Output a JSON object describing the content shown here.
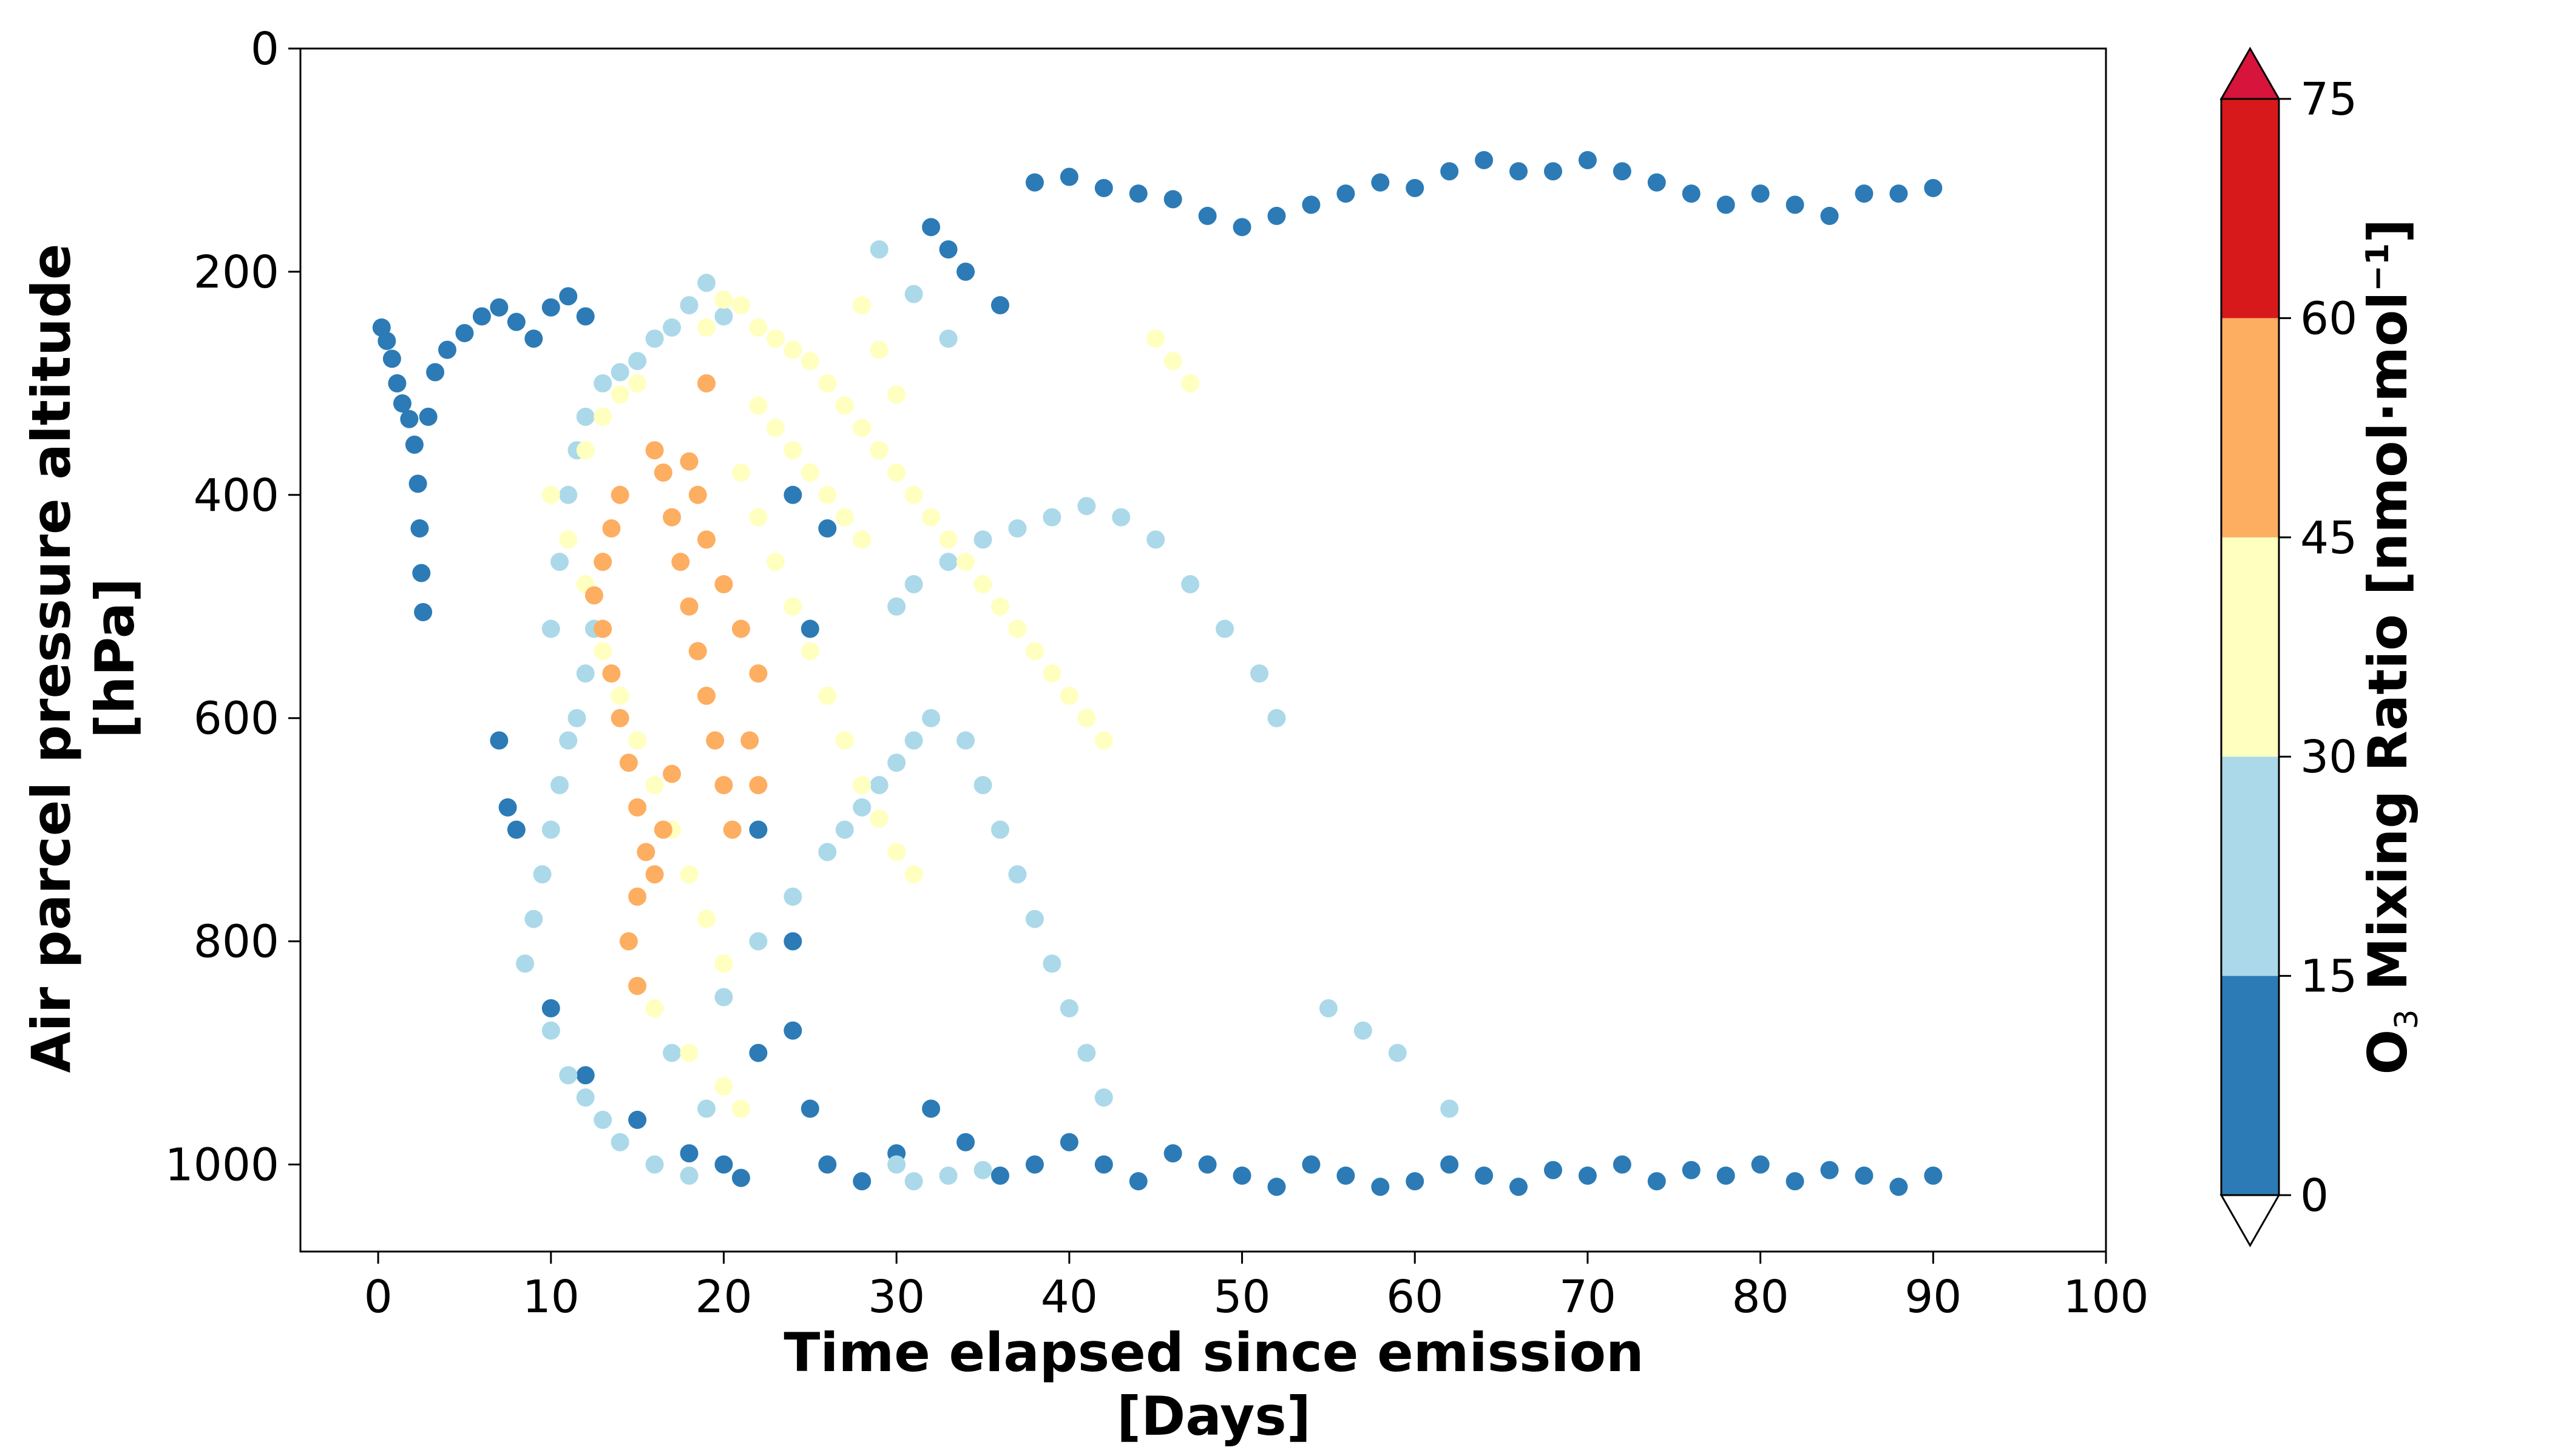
{
  "chart_data": {
    "type": "scatter",
    "title": "",
    "xlabel": [
      "Time elapsed since emission",
      "[Days]"
    ],
    "ylabel": [
      "Air parcel pressure altitude",
      "[hPa]"
    ],
    "xlim": [
      -4.5,
      100
    ],
    "ylim": [
      1078,
      0
    ],
    "y_inverted": true,
    "grid": false,
    "x_ticks": [
      "0",
      "10",
      "20",
      "30",
      "40",
      "50",
      "60",
      "70",
      "80",
      "90",
      "100"
    ],
    "y_ticks": [
      "0",
      "200",
      "400",
      "600",
      "800",
      "1000"
    ],
    "colorbar": {
      "label_prefix": "O",
      "label_subscript": "3",
      "label_suffix": " Mixing Ratio [nmol·mol",
      "label_superscript": "−1",
      "label_close": "]",
      "ticks": [
        "0",
        "15",
        "30",
        "45",
        "60",
        "75"
      ],
      "extend": "both",
      "bins": [
        {
          "min": 0,
          "max": 15,
          "color": "#2c7bb6"
        },
        {
          "min": 15,
          "max": 30,
          "color": "#abd9e9"
        },
        {
          "min": 30,
          "max": 45,
          "color": "#ffffbf"
        },
        {
          "min": 45,
          "max": 60,
          "color": "#fdae61"
        },
        {
          "min": 60,
          "max": 75,
          "color": "#d7191c"
        }
      ],
      "over_color": "#d7143c",
      "under_color": "#ffffff"
    },
    "series": [
      {
        "category": "0-15",
        "color": "#2c7bb6",
        "points": [
          [
            0.2,
            250
          ],
          [
            0.5,
            262
          ],
          [
            0.8,
            278
          ],
          [
            1.1,
            300
          ],
          [
            1.4,
            318
          ],
          [
            1.8,
            332
          ],
          [
            2.1,
            355
          ],
          [
            2.3,
            390
          ],
          [
            2.4,
            430
          ],
          [
            2.5,
            470
          ],
          [
            2.6,
            505
          ],
          [
            2.9,
            330
          ],
          [
            3.3,
            290
          ],
          [
            4.0,
            270
          ],
          [
            5.0,
            255
          ],
          [
            6.0,
            240
          ],
          [
            7.0,
            232
          ],
          [
            8.0,
            245
          ],
          [
            9.0,
            260
          ],
          [
            10.0,
            232
          ],
          [
            11.0,
            222
          ],
          [
            12.0,
            240
          ],
          [
            7.0,
            620
          ],
          [
            7.5,
            680
          ],
          [
            8.0,
            700
          ],
          [
            10.0,
            860
          ],
          [
            12.0,
            920
          ],
          [
            15.0,
            960
          ],
          [
            18.0,
            990
          ],
          [
            20.0,
            1000
          ],
          [
            21.0,
            1012
          ],
          [
            22.0,
            900
          ],
          [
            24.0,
            880
          ],
          [
            25.0,
            950
          ],
          [
            26.0,
            1000
          ],
          [
            28.0,
            1015
          ],
          [
            30.0,
            990
          ],
          [
            32.0,
            950
          ],
          [
            34.0,
            980
          ],
          [
            36.0,
            1010
          ],
          [
            38.0,
            1000
          ],
          [
            40.0,
            980
          ],
          [
            42.0,
            1000
          ],
          [
            44.0,
            1015
          ],
          [
            46.0,
            990
          ],
          [
            48.0,
            1000
          ],
          [
            50.0,
            1010
          ],
          [
            52.0,
            1020
          ],
          [
            54.0,
            1000
          ],
          [
            56.0,
            1010
          ],
          [
            58.0,
            1020
          ],
          [
            60.0,
            1015
          ],
          [
            62.0,
            1000
          ],
          [
            64.0,
            1010
          ],
          [
            66.0,
            1020
          ],
          [
            68.0,
            1005
          ],
          [
            70.0,
            1010
          ],
          [
            72.0,
            1000
          ],
          [
            74.0,
            1015
          ],
          [
            76.0,
            1005
          ],
          [
            78.0,
            1010
          ],
          [
            80.0,
            1000
          ],
          [
            82.0,
            1015
          ],
          [
            84.0,
            1005
          ],
          [
            86.0,
            1010
          ],
          [
            88.0,
            1020
          ],
          [
            90.0,
            1010
          ],
          [
            38.0,
            120
          ],
          [
            40.0,
            115
          ],
          [
            42.0,
            125
          ],
          [
            44.0,
            130
          ],
          [
            46.0,
            135
          ],
          [
            48.0,
            150
          ],
          [
            50.0,
            160
          ],
          [
            52.0,
            150
          ],
          [
            54.0,
            140
          ],
          [
            56.0,
            130
          ],
          [
            58.0,
            120
          ],
          [
            60.0,
            125
          ],
          [
            62.0,
            110
          ],
          [
            64.0,
            100
          ],
          [
            66.0,
            110
          ],
          [
            68.0,
            110
          ],
          [
            70.0,
            100
          ],
          [
            72.0,
            110
          ],
          [
            74.0,
            120
          ],
          [
            76.0,
            130
          ],
          [
            78.0,
            140
          ],
          [
            80.0,
            130
          ],
          [
            82.0,
            140
          ],
          [
            84.0,
            150
          ],
          [
            86.0,
            130
          ],
          [
            88.0,
            130
          ],
          [
            90.0,
            125
          ],
          [
            32.0,
            160
          ],
          [
            33.0,
            180
          ],
          [
            34.0,
            200
          ],
          [
            36.0,
            230
          ],
          [
            24.0,
            400
          ],
          [
            26.0,
            430
          ],
          [
            25.0,
            520
          ],
          [
            22.0,
            700
          ],
          [
            24.0,
            800
          ]
        ]
      },
      {
        "category": "15-30",
        "color": "#abd9e9",
        "points": [
          [
            8.5,
            820
          ],
          [
            9.0,
            780
          ],
          [
            9.5,
            740
          ],
          [
            10.0,
            700
          ],
          [
            10.5,
            660
          ],
          [
            11.0,
            620
          ],
          [
            11.5,
            600
          ],
          [
            12.0,
            560
          ],
          [
            12.5,
            520
          ],
          [
            10.0,
            520
          ],
          [
            10.5,
            460
          ],
          [
            11.0,
            400
          ],
          [
            11.5,
            360
          ],
          [
            12.0,
            330
          ],
          [
            13.0,
            300
          ],
          [
            14.0,
            290
          ],
          [
            15.0,
            280
          ],
          [
            16.0,
            260
          ],
          [
            17.0,
            250
          ],
          [
            18.0,
            230
          ],
          [
            19.0,
            210
          ],
          [
            20.0,
            240
          ],
          [
            10.0,
            880
          ],
          [
            11.0,
            920
          ],
          [
            12.0,
            940
          ],
          [
            13.0,
            960
          ],
          [
            14.0,
            980
          ],
          [
            16.0,
            1000
          ],
          [
            18.0,
            1010
          ],
          [
            17.0,
            900
          ],
          [
            19.0,
            950
          ],
          [
            20.0,
            850
          ],
          [
            22.0,
            800
          ],
          [
            24.0,
            760
          ],
          [
            26.0,
            720
          ],
          [
            27.0,
            700
          ],
          [
            28.0,
            680
          ],
          [
            29.0,
            660
          ],
          [
            30.0,
            640
          ],
          [
            31.0,
            620
          ],
          [
            32.0,
            600
          ],
          [
            34.0,
            620
          ],
          [
            35.0,
            660
          ],
          [
            36.0,
            700
          ],
          [
            37.0,
            740
          ],
          [
            38.0,
            780
          ],
          [
            39.0,
            820
          ],
          [
            40.0,
            860
          ],
          [
            41.0,
            900
          ],
          [
            42.0,
            940
          ],
          [
            30.0,
            500
          ],
          [
            31.0,
            480
          ],
          [
            33.0,
            460
          ],
          [
            35.0,
            440
          ],
          [
            37.0,
            430
          ],
          [
            39.0,
            420
          ],
          [
            41.0,
            410
          ],
          [
            43.0,
            420
          ],
          [
            45.0,
            440
          ],
          [
            47.0,
            480
          ],
          [
            49.0,
            520
          ],
          [
            51.0,
            560
          ],
          [
            52.0,
            600
          ],
          [
            29.0,
            180
          ],
          [
            31.0,
            220
          ],
          [
            33.0,
            260
          ],
          [
            30.0,
            1000
          ],
          [
            31.0,
            1015
          ],
          [
            33.0,
            1010
          ],
          [
            35.0,
            1005
          ],
          [
            55.0,
            860
          ],
          [
            57.0,
            880
          ],
          [
            59.0,
            900
          ],
          [
            62.0,
            950
          ]
        ]
      },
      {
        "category": "30-45",
        "color": "#ffffbf",
        "points": [
          [
            10.0,
            400
          ],
          [
            11.0,
            440
          ],
          [
            12.0,
            480
          ],
          [
            13.0,
            540
          ],
          [
            14.0,
            580
          ],
          [
            15.0,
            620
          ],
          [
            16.0,
            660
          ],
          [
            17.0,
            700
          ],
          [
            18.0,
            740
          ],
          [
            19.0,
            780
          ],
          [
            20.0,
            820
          ],
          [
            16.0,
            860
          ],
          [
            18.0,
            900
          ],
          [
            20.0,
            930
          ],
          [
            21.0,
            950
          ],
          [
            12.0,
            360
          ],
          [
            13.0,
            330
          ],
          [
            14.0,
            310
          ],
          [
            15.0,
            300
          ],
          [
            19.0,
            250
          ],
          [
            20.0,
            225
          ],
          [
            21.0,
            230
          ],
          [
            22.0,
            250
          ],
          [
            23.0,
            260
          ],
          [
            24.0,
            270
          ],
          [
            25.0,
            280
          ],
          [
            26.0,
            300
          ],
          [
            27.0,
            320
          ],
          [
            28.0,
            340
          ],
          [
            29.0,
            360
          ],
          [
            30.0,
            380
          ],
          [
            31.0,
            400
          ],
          [
            32.0,
            420
          ],
          [
            33.0,
            440
          ],
          [
            34.0,
            460
          ],
          [
            35.0,
            480
          ],
          [
            36.0,
            500
          ],
          [
            37.0,
            520
          ],
          [
            38.0,
            540
          ],
          [
            39.0,
            560
          ],
          [
            40.0,
            580
          ],
          [
            41.0,
            600
          ],
          [
            42.0,
            620
          ],
          [
            21.0,
            380
          ],
          [
            22.0,
            420
          ],
          [
            23.0,
            460
          ],
          [
            24.0,
            500
          ],
          [
            25.0,
            540
          ],
          [
            26.0,
            580
          ],
          [
            27.0,
            620
          ],
          [
            28.0,
            660
          ],
          [
            29.0,
            690
          ],
          [
            30.0,
            720
          ],
          [
            31.0,
            740
          ],
          [
            22.0,
            320
          ],
          [
            23.0,
            340
          ],
          [
            24.0,
            360
          ],
          [
            25.0,
            380
          ],
          [
            26.0,
            400
          ],
          [
            27.0,
            420
          ],
          [
            28.0,
            440
          ],
          [
            28.0,
            230
          ],
          [
            29.0,
            270
          ],
          [
            30.0,
            310
          ],
          [
            45.0,
            260
          ],
          [
            46.0,
            280
          ],
          [
            47.0,
            300
          ]
        ]
      },
      {
        "category": "45-60",
        "color": "#fdae61",
        "points": [
          [
            12.5,
            490
          ],
          [
            13.0,
            520
          ],
          [
            13.5,
            560
          ],
          [
            14.0,
            600
          ],
          [
            14.5,
            640
          ],
          [
            15.0,
            680
          ],
          [
            15.5,
            720
          ],
          [
            15.0,
            760
          ],
          [
            14.5,
            800
          ],
          [
            15.0,
            840
          ],
          [
            13.0,
            460
          ],
          [
            13.5,
            430
          ],
          [
            14.0,
            400
          ],
          [
            16.0,
            360
          ],
          [
            16.5,
            380
          ],
          [
            17.0,
            420
          ],
          [
            17.5,
            460
          ],
          [
            18.0,
            500
          ],
          [
            18.5,
            540
          ],
          [
            19.0,
            580
          ],
          [
            19.5,
            620
          ],
          [
            20.0,
            660
          ],
          [
            20.5,
            700
          ],
          [
            17.0,
            650
          ],
          [
            16.5,
            700
          ],
          [
            16.0,
            740
          ],
          [
            18.0,
            370
          ],
          [
            18.5,
            400
          ],
          [
            19.0,
            440
          ],
          [
            20.0,
            480
          ],
          [
            21.0,
            520
          ],
          [
            22.0,
            560
          ],
          [
            21.5,
            620
          ],
          [
            22.0,
            660
          ],
          [
            19.0,
            300
          ]
        ]
      }
    ]
  }
}
